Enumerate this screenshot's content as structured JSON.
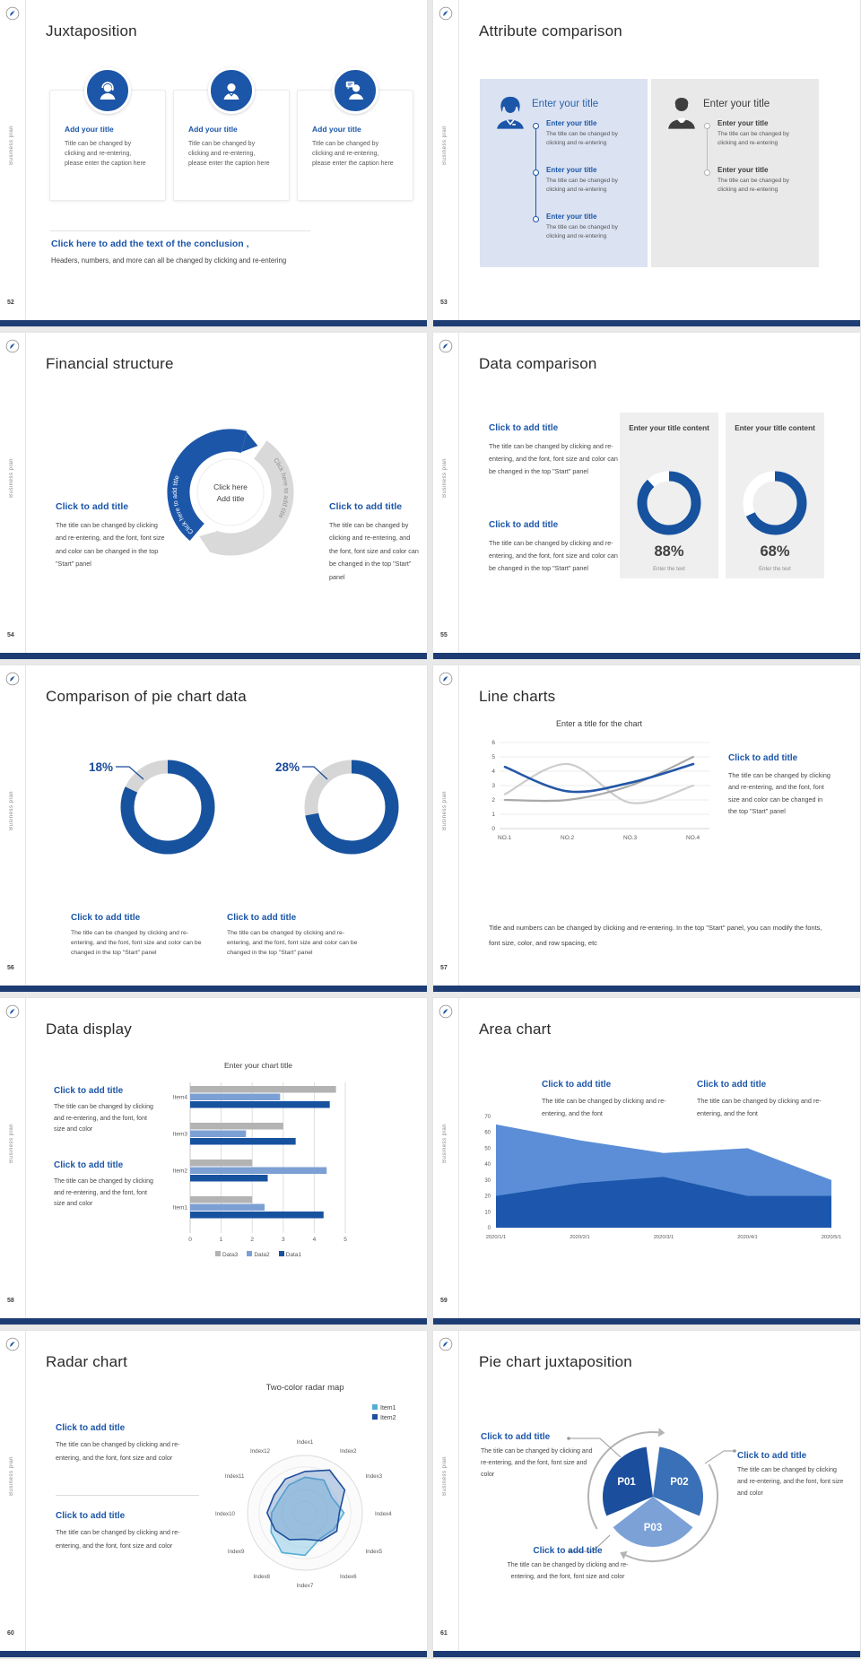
{
  "page_bg": "#e9e9e9",
  "accent": "#1c56a8",
  "navy_bar": "#1d3c74",
  "sidebar": {
    "vertical_text": "Business plan",
    "logo": "emblem-logo"
  },
  "slides": {
    "s52": {
      "page": "52",
      "title": "Juxtaposition",
      "cards": [
        {
          "icon": "support-person-icon",
          "title": "Add your title",
          "body": "Title can be changed by clicking and re-entering, please enter the caption here"
        },
        {
          "icon": "person-icon",
          "title": "Add your title",
          "body": "Title can be changed by clicking and re-entering, please enter the caption here"
        },
        {
          "icon": "person-chat-icon",
          "title": "Add your title",
          "body": "Title can be changed by clicking and re-entering, please enter the caption here"
        }
      ],
      "conclusion_title": "Click here to add the text of the conclusion ,",
      "conclusion_body": "Headers, numbers, and more can all be changed by clicking and re-entering"
    },
    "s53": {
      "page": "53",
      "title": "Attribute comparison",
      "left_panel": {
        "bg": "#dbe3f2",
        "header": "Enter your title",
        "items": [
          {
            "title": "Enter your title",
            "body": "The title can be changed by clicking and re-entering"
          },
          {
            "title": "Enter your title",
            "body": "The title can be changed by clicking and re-entering"
          },
          {
            "title": "Enter your title",
            "body": "The title can be changed by clicking and re-entering"
          }
        ]
      },
      "right_panel": {
        "bg": "#e9e9e9",
        "header": "Enter your title",
        "items": [
          {
            "title": "Enter your title",
            "body": "The title can be changed by clicking and re-entering"
          },
          {
            "title": "Enter your title",
            "body": "The title can be changed by clicking and re-entering"
          }
        ]
      }
    },
    "s54": {
      "page": "54",
      "title": "Financial structure",
      "left_block": {
        "title": "Click to add title",
        "body": "The title can be changed by clicking and re-entering, and the font, font size and color can be changed in the top \"Start\" panel"
      },
      "right_block": {
        "title": "Click to add title",
        "body": "The title can be changed by clicking and re-entering, and the font, font size and color can be changed in the top \"Start\" panel"
      },
      "cycle": {
        "arrow_text_left": "Click here to add title",
        "arrow_text_right": "Click here to add title",
        "center_line1": "Click here",
        "center_line2": "Add title",
        "blue": "#1c56a8",
        "gray": "#d9d9d9"
      }
    },
    "s55": {
      "page": "55",
      "title": "Data comparison",
      "blocks": [
        {
          "title": "Click to add title",
          "body": "The title can be changed by clicking and re-entering, and the font, font size and color can be changed in the top \"Start\" panel"
        },
        {
          "title": "Click to add title",
          "body": "The title can be changed by clicking and re-entering, and the font, font size and color can be changed in the top \"Start\" panel"
        }
      ],
      "cards": [
        {
          "header": "Enter your title content",
          "value": 88,
          "label": "88%",
          "caption": "Enter the text",
          "color": "#17529f",
          "track": "#ffffff"
        },
        {
          "header": "Enter your title content",
          "value": 68,
          "label": "68%",
          "caption": "Enter the text",
          "color": "#17529f",
          "track": "#ffffff"
        }
      ]
    },
    "s56": {
      "page": "56",
      "title": "Comparison of pie chart data",
      "groups": [
        {
          "label": "18%",
          "gray_percent": 18,
          "value": 82,
          "color": "#17529f",
          "track": "#d6d6d6",
          "title": "Click to add title",
          "body": "The title can be changed by clicking and re-entering, and the font, font size and color can be changed in the top \"Start\" panel"
        },
        {
          "label": "28%",
          "gray_percent": 28,
          "value": 72,
          "color": "#17529f",
          "track": "#d6d6d6",
          "title": "Click to add title",
          "body": "The title can be changed by clicking and re-entering, and the font, font size and color can be changed in the top \"Start\" panel"
        }
      ]
    },
    "s57": {
      "page": "57",
      "title": "Line charts",
      "side_block": {
        "title": "Click to add title",
        "body": "The title can be changed by clicking and re-entering, and the font, font size and color can be changed in the top \"Start\" panel"
      },
      "footer": "Title and numbers can be changed by clicking and re-entering. In the top \"Start\" panel, you can modify the fonts, font size, color, and row spacing, etc",
      "chart": {
        "type": "line",
        "title": "Enter a title for the chart",
        "categories": [
          "NO.1",
          "NO.2",
          "NO.3",
          "NO.4"
        ],
        "ylim": [
          0,
          6
        ],
        "y_ticks": [
          0,
          1,
          2,
          3,
          4,
          5,
          6
        ],
        "series": [
          {
            "name": "blue",
            "color": "#2457a7",
            "width": 2.6,
            "values": [
              4.3,
              2.6,
              3.2,
              4.5
            ]
          },
          {
            "name": "gray",
            "color": "#a9a9a9",
            "width": 2.2,
            "values": [
              2.0,
              2.0,
              3.0,
              5.0
            ]
          },
          {
            "name": "light-gray",
            "color": "#cdcdcd",
            "width": 2.2,
            "values": [
              2.4,
              4.5,
              1.8,
              3.0
            ]
          }
        ]
      }
    },
    "s58": {
      "page": "58",
      "title": "Data display",
      "blocks": [
        {
          "title": "Click to add title",
          "body": "The title can be changed by clicking and re-entering, and the font, font size and color"
        },
        {
          "title": "Click to add title",
          "body": "The title can be changed by clicking and re-entering, and the font, font size and color"
        }
      ],
      "chart": {
        "type": "bar",
        "title": "Enter your chart title",
        "categories": [
          "Item1",
          "Item2",
          "Item3",
          "Item4"
        ],
        "xlim": [
          0,
          5
        ],
        "x_ticks": [
          0,
          1,
          2,
          3,
          4,
          5
        ],
        "series": [
          {
            "name": "Data3",
            "color": "#b3b3b3",
            "values": [
              2.0,
              2.0,
              3.0,
              4.7
            ]
          },
          {
            "name": "Data2",
            "color": "#7da0d4",
            "values": [
              2.4,
              4.4,
              1.8,
              2.9
            ]
          },
          {
            "name": "Data1",
            "color": "#17529f",
            "values": [
              4.3,
              2.5,
              3.4,
              4.5
            ]
          }
        ]
      }
    },
    "s59": {
      "page": "59",
      "title": "Area chart",
      "blocks": [
        {
          "title": "Click to add title",
          "body": "The title can be changed by clicking and re-entering, and the font"
        },
        {
          "title": "Click to add title",
          "body": "The title can be changed by clicking and re-entering, and the font"
        }
      ],
      "chart": {
        "type": "area",
        "categories": [
          "2020/1/1",
          "2020/2/1",
          "2020/3/1",
          "2020/4/1",
          "2020/5/1"
        ],
        "ylim": [
          0,
          70
        ],
        "y_ticks": [
          0,
          10,
          20,
          30,
          40,
          50,
          60,
          70
        ],
        "series": [
          {
            "name": "upper",
            "color": "#5b8ed6",
            "values": [
              65,
              55,
              47,
              50,
              30
            ]
          },
          {
            "name": "lower",
            "color": "#1c57ad",
            "values": [
              20,
              28,
              32,
              20,
              20
            ]
          }
        ]
      }
    },
    "s60": {
      "page": "60",
      "title": "Radar chart",
      "blocks": [
        {
          "title": "Click to add title",
          "body": "The title can be changed by clicking and re-entering, and the font, font size and color"
        },
        {
          "title": "Click to add title",
          "body": "The title can be changed by clicking and re-entering, and the font, font size and color"
        }
      ],
      "chart": {
        "type": "radar",
        "title": "Two-color radar map",
        "axes": [
          "Index1",
          "Index2",
          "Index3",
          "Index4",
          "Index5",
          "Index6",
          "Index7",
          "Index8",
          "Index9",
          "Index10",
          "Index11",
          "Index12"
        ],
        "rmax": 5,
        "series": [
          {
            "name": "Item1",
            "color": "#55aed3",
            "fill": "rgba(137,199,227,0.50)",
            "values": [
              3.1,
              3.3,
              2.7,
              3.4,
              2.9,
              2.6,
              3.7,
              4.0,
              3.4,
              2.9,
              2.5,
              2.8
            ]
          },
          {
            "name": "Item2",
            "color": "#1f4e9c",
            "fill": "rgba(79,129,189,0.35)",
            "values": [
              3.6,
              4.3,
              4.0,
              3.0,
              3.2,
              2.8,
              2.3,
              2.7,
              3.0,
              3.3,
              3.1,
              3.4
            ]
          }
        ]
      }
    },
    "s61": {
      "page": "61",
      "title": "Pie chart juxtaposition",
      "blocks": [
        {
          "title": "Click to add title",
          "body": "The title can be changed by clicking and re-entering, and the font, font size and color"
        },
        {
          "title": "Click to add title",
          "body": "The title can be changed by clicking and re-entering, and the font, font size and color"
        },
        {
          "title": "Click to add title",
          "body": "The title can be changed by clicking and re-entering, and the font, font size and color"
        }
      ],
      "chart": {
        "type": "pie",
        "slices": [
          {
            "label": "P01",
            "color": "#1c4e9e"
          },
          {
            "label": "P02",
            "color": "#3a70b7"
          },
          {
            "label": "P03",
            "color": "#7ba1d7"
          }
        ]
      }
    }
  }
}
